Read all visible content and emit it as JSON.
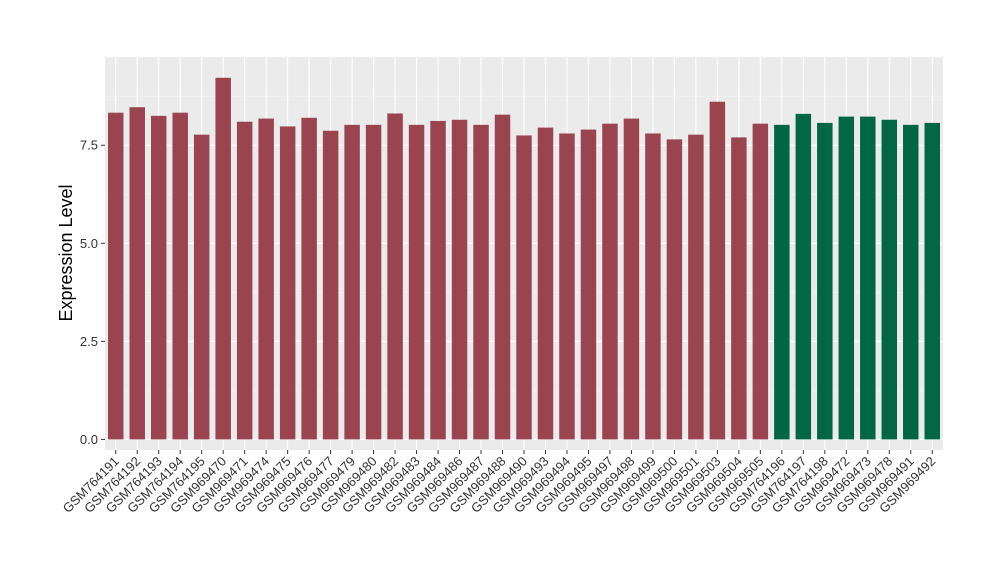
{
  "chart_data": {
    "type": "bar",
    "title": "",
    "xlabel": "",
    "ylabel": "Expression Level",
    "ylim": [
      -0.27,
      9.75
    ],
    "yticks": [
      0.0,
      2.5,
      5.0,
      7.5
    ],
    "ytick_labels": [
      "0.0",
      "2.5",
      "5.0",
      "7.5"
    ],
    "grid": true,
    "legend": "none",
    "colors": {
      "group_a": "#9A4450",
      "group_b": "#006644",
      "panel": "#EBEBEB",
      "grid_major": "#FFFFFF",
      "grid_minor": "#F5F5F5"
    },
    "categories": [
      "GSM764191",
      "GSM764192",
      "GSM764193",
      "GSM764194",
      "GSM764195",
      "GSM969470",
      "GSM969471",
      "GSM969474",
      "GSM969475",
      "GSM969476",
      "GSM969477",
      "GSM969479",
      "GSM969480",
      "GSM969482",
      "GSM969483",
      "GSM969484",
      "GSM969486",
      "GSM969487",
      "GSM969488",
      "GSM969490",
      "GSM969493",
      "GSM969494",
      "GSM969495",
      "GSM969497",
      "GSM969498",
      "GSM969499",
      "GSM969500",
      "GSM969501",
      "GSM969503",
      "GSM969504",
      "GSM969505",
      "GSM764196",
      "GSM764197",
      "GSM764198",
      "GSM969472",
      "GSM969473",
      "GSM969478",
      "GSM969491",
      "GSM969492"
    ],
    "values": [
      8.33,
      8.47,
      8.25,
      8.33,
      7.77,
      9.22,
      8.1,
      8.18,
      7.98,
      8.2,
      7.87,
      8.02,
      8.02,
      8.31,
      8.02,
      8.12,
      8.15,
      8.02,
      8.28,
      7.75,
      7.95,
      7.8,
      7.9,
      8.05,
      8.18,
      7.8,
      7.65,
      7.77,
      8.61,
      7.7,
      8.05,
      8.02,
      8.3,
      8.07,
      8.23,
      8.23,
      8.15,
      8.02,
      8.07
    ],
    "groups": [
      "a",
      "a",
      "a",
      "a",
      "a",
      "a",
      "a",
      "a",
      "a",
      "a",
      "a",
      "a",
      "a",
      "a",
      "a",
      "a",
      "a",
      "a",
      "a",
      "a",
      "a",
      "a",
      "a",
      "a",
      "a",
      "a",
      "a",
      "a",
      "a",
      "a",
      "a",
      "b",
      "b",
      "b",
      "b",
      "b",
      "b",
      "b",
      "b"
    ]
  }
}
